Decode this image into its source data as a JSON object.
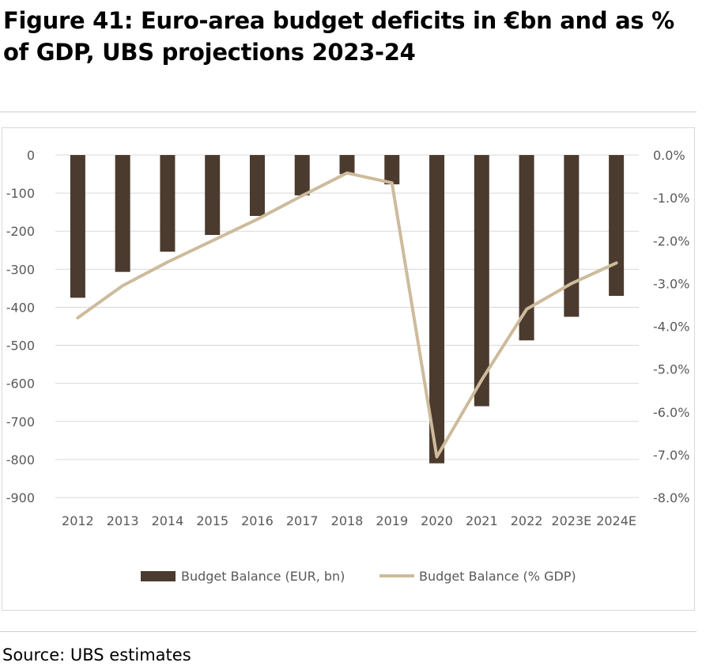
{
  "title": "Figure 41: Euro-area budget deficits in €bn and as % of GDP, UBS projections 2023-24",
  "source": "Source: UBS estimates",
  "chart_data": {
    "type": "bar",
    "categories": [
      "2012",
      "2013",
      "2014",
      "2015",
      "2016",
      "2017",
      "2018",
      "2019",
      "2020",
      "2021",
      "2022",
      "2023E",
      "2024E"
    ],
    "series": [
      {
        "name": "Budget Balance (EUR, bn)",
        "type": "bar",
        "axis": "left",
        "color": "#4b3a2e",
        "values": [
          -375,
          -307,
          -254,
          -210,
          -160,
          -106,
          -50,
          -77,
          -810,
          -660,
          -487,
          -425,
          -370
        ]
      },
      {
        "name": "Budget Balance (% GDP)",
        "type": "line",
        "axis": "right",
        "color": "#cdbb9c",
        "values": [
          -3.8,
          -3.05,
          -2.5,
          -2.0,
          -1.5,
          -0.95,
          -0.42,
          -0.65,
          -7.05,
          -5.25,
          -3.6,
          -3.0,
          -2.52
        ]
      }
    ],
    "y_left": {
      "ylim": [
        -900,
        0
      ],
      "ticks": [
        0,
        -100,
        -200,
        -300,
        -400,
        -500,
        -600,
        -700,
        -800,
        -900
      ],
      "tick_labels": [
        "0",
        "-100",
        "-200",
        "-300",
        "-400",
        "-500",
        "-600",
        "-700",
        "-800",
        "-900"
      ]
    },
    "y_right": {
      "ylim": [
        -8.0,
        0.0
      ],
      "ticks": [
        0,
        -1,
        -2,
        -3,
        -4,
        -5,
        -6,
        -7,
        -8
      ],
      "tick_labels": [
        "0.0%",
        "-1.0%",
        "-2.0%",
        "-3.0%",
        "-4.0%",
        "-5.0%",
        "-6.0%",
        "-7.0%",
        "-8.0%"
      ]
    },
    "grid": true,
    "legend": "bottom"
  }
}
